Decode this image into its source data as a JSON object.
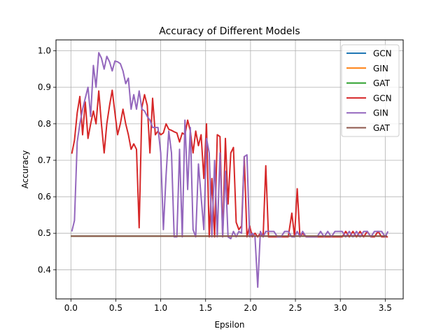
{
  "chart_data": {
    "type": "line",
    "title": "Accuracy of Different Models",
    "xlabel": "Epsilon",
    "ylabel": "Accuracy",
    "xlim": [
      -0.166,
      3.7
    ],
    "ylim": [
      0.32,
      1.03
    ],
    "xticks": [
      0.0,
      0.5,
      1.0,
      1.5,
      2.0,
      2.5,
      3.0,
      3.5
    ],
    "xtick_labels": [
      "0.0",
      "0.5",
      "1.0",
      "1.5",
      "2.0",
      "2.5",
      "3.0",
      "3.5"
    ],
    "yticks": [
      0.4,
      0.5,
      0.6,
      0.7,
      0.8,
      0.9,
      1.0
    ],
    "ytick_labels": [
      "0.4",
      "0.5",
      "0.6",
      "0.7",
      "0.8",
      "0.9",
      "1.0"
    ],
    "grid": true,
    "legend_position": "top-right",
    "series": [
      {
        "name": "GCN",
        "color": "#1f77b4",
        "x": [
          0.0,
          3.52
        ],
        "y": [
          0.492,
          0.492
        ]
      },
      {
        "name": "GIN",
        "color": "#ff7f0e",
        "x": [
          0.0,
          3.52
        ],
        "y": [
          0.492,
          0.492
        ]
      },
      {
        "name": "GAT",
        "color": "#2ca02c",
        "x": [
          0.0,
          3.52
        ],
        "y": [
          0.492,
          0.492
        ]
      },
      {
        "name": "GCN",
        "color": "#d62728",
        "x": [
          0.01,
          0.04,
          0.07,
          0.1,
          0.13,
          0.16,
          0.19,
          0.22,
          0.25,
          0.28,
          0.31,
          0.34,
          0.37,
          0.4,
          0.43,
          0.46,
          0.49,
          0.52,
          0.55,
          0.58,
          0.61,
          0.64,
          0.67,
          0.7,
          0.73,
          0.76,
          0.79,
          0.82,
          0.85,
          0.88,
          0.91,
          0.94,
          0.97,
          1.0,
          1.03,
          1.06,
          1.09,
          1.12,
          1.15,
          1.18,
          1.21,
          1.24,
          1.27,
          1.3,
          1.33,
          1.36,
          1.39,
          1.42,
          1.45,
          1.48,
          1.51,
          1.54,
          1.57,
          1.6,
          1.63,
          1.66,
          1.69,
          1.72,
          1.75,
          1.78,
          1.81,
          1.84,
          1.87,
          1.9,
          1.93,
          1.96,
          1.99,
          2.02,
          2.05,
          2.08,
          2.11,
          2.14,
          2.17,
          2.2,
          2.23,
          2.26,
          2.3,
          2.34,
          2.38,
          2.42,
          2.46,
          2.49,
          2.52,
          2.55,
          2.58,
          2.62,
          2.66,
          2.7,
          2.74,
          2.78,
          2.82,
          2.86,
          2.9,
          2.94,
          2.98,
          3.02,
          3.06,
          3.1,
          3.14,
          3.18,
          3.22,
          3.26,
          3.3,
          3.34,
          3.38,
          3.42,
          3.46,
          3.5,
          3.53
        ],
        "y": [
          0.718,
          0.755,
          0.83,
          0.875,
          0.77,
          0.86,
          0.76,
          0.8,
          0.835,
          0.8,
          0.89,
          0.8,
          0.72,
          0.8,
          0.85,
          0.892,
          0.83,
          0.77,
          0.8,
          0.84,
          0.8,
          0.77,
          0.73,
          0.745,
          0.73,
          0.515,
          0.845,
          0.88,
          0.85,
          0.72,
          0.87,
          0.77,
          0.78,
          0.77,
          0.775,
          0.8,
          0.785,
          0.782,
          0.778,
          0.775,
          0.75,
          0.775,
          0.77,
          0.81,
          0.78,
          0.72,
          0.78,
          0.74,
          0.77,
          0.65,
          0.8,
          0.49,
          0.65,
          0.49,
          0.77,
          0.765,
          0.49,
          0.76,
          0.58,
          0.72,
          0.735,
          0.53,
          0.51,
          0.52,
          0.71,
          0.49,
          0.52,
          0.49,
          0.5,
          0.49,
          0.5,
          0.49,
          0.685,
          0.49,
          0.49,
          0.49,
          0.49,
          0.49,
          0.49,
          0.49,
          0.555,
          0.49,
          0.622,
          0.49,
          0.5,
          0.49,
          0.49,
          0.49,
          0.49,
          0.49,
          0.49,
          0.49,
          0.49,
          0.49,
          0.49,
          0.49,
          0.505,
          0.49,
          0.505,
          0.49,
          0.505,
          0.49,
          0.505,
          0.49,
          0.49,
          0.505,
          0.49,
          0.49,
          0.49
        ]
      },
      {
        "name": "GIN",
        "color": "#9467bd",
        "x": [
          0.01,
          0.04,
          0.07,
          0.1,
          0.13,
          0.16,
          0.19,
          0.22,
          0.25,
          0.28,
          0.31,
          0.34,
          0.37,
          0.4,
          0.43,
          0.46,
          0.49,
          0.52,
          0.55,
          0.58,
          0.61,
          0.64,
          0.67,
          0.7,
          0.73,
          0.76,
          0.79,
          0.82,
          0.85,
          0.88,
          0.91,
          0.94,
          0.97,
          1.0,
          1.03,
          1.06,
          1.09,
          1.12,
          1.15,
          1.18,
          1.21,
          1.24,
          1.27,
          1.3,
          1.33,
          1.36,
          1.39,
          1.42,
          1.45,
          1.48,
          1.51,
          1.54,
          1.57,
          1.6,
          1.63,
          1.66,
          1.69,
          1.72,
          1.75,
          1.78,
          1.81,
          1.84,
          1.87,
          1.9,
          1.93,
          1.96,
          1.99,
          2.02,
          2.05,
          2.08,
          2.11,
          2.14,
          2.17,
          2.2,
          2.23,
          2.26,
          2.3,
          2.34,
          2.38,
          2.42,
          2.46,
          2.49,
          2.52,
          2.55,
          2.58,
          2.62,
          2.66,
          2.7,
          2.74,
          2.78,
          2.82,
          2.86,
          2.9,
          2.94,
          2.98,
          3.02,
          3.06,
          3.1,
          3.14,
          3.18,
          3.22,
          3.26,
          3.3,
          3.34,
          3.38,
          3.42,
          3.46,
          3.5,
          3.53
        ],
        "y": [
          0.505,
          0.535,
          0.75,
          0.8,
          0.84,
          0.87,
          0.9,
          0.82,
          0.96,
          0.9,
          0.995,
          0.98,
          0.95,
          0.985,
          0.97,
          0.945,
          0.972,
          0.97,
          0.965,
          0.945,
          0.91,
          0.925,
          0.84,
          0.88,
          0.84,
          0.89,
          0.84,
          0.835,
          0.82,
          0.81,
          0.79,
          0.79,
          0.79,
          0.72,
          0.51,
          0.66,
          0.78,
          0.72,
          0.49,
          0.49,
          0.73,
          0.49,
          0.81,
          0.62,
          0.79,
          0.51,
          0.49,
          0.69,
          0.6,
          0.51,
          0.76,
          0.72,
          0.49,
          0.7,
          0.49,
          0.72,
          0.49,
          0.67,
          0.49,
          0.485,
          0.505,
          0.49,
          0.505,
          0.5,
          0.71,
          0.715,
          0.49,
          0.5,
          0.49,
          0.352,
          0.505,
          0.49,
          0.505,
          0.505,
          0.505,
          0.505,
          0.49,
          0.49,
          0.505,
          0.505,
          0.49,
          0.49,
          0.505,
          0.49,
          0.505,
          0.49,
          0.49,
          0.49,
          0.49,
          0.505,
          0.49,
          0.505,
          0.49,
          0.505,
          0.505,
          0.505,
          0.49,
          0.505,
          0.49,
          0.505,
          0.49,
          0.505,
          0.505,
          0.49,
          0.505,
          0.505,
          0.505,
          0.49,
          0.505
        ]
      },
      {
        "name": "GAT",
        "color": "#8c564b",
        "x": [
          0.0,
          3.52
        ],
        "y": [
          0.492,
          0.492
        ]
      }
    ]
  }
}
